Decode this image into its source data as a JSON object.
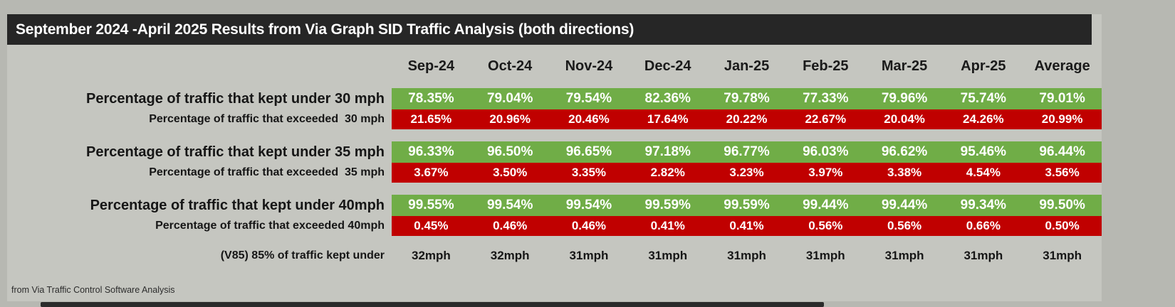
{
  "title": "September 2024 -April 2025 Results from Via Graph SID Traffic Analysis (both directions)",
  "footer": "from Via Traffic Control Software Analysis",
  "colors": {
    "title_bar_bg": "#262626",
    "canvas_bg": "#c5c6c0",
    "page_bg": "#b7b8b2",
    "kept_under_green": "#70ad47",
    "exceeded_red": "#c00000",
    "value_text": "#ffffff"
  },
  "chart_data": {
    "type": "table",
    "title": "September 2024 -April 2025 Results from Via Graph SID Traffic Analysis (both directions)",
    "columns": [
      "Sep-24",
      "Oct-24",
      "Nov-24",
      "Dec-24",
      "Jan-25",
      "Feb-25",
      "Mar-25",
      "Apr-25",
      "Average"
    ],
    "rows": [
      {
        "label": "Percentage of traffic that kept under 30 mph",
        "style": "green",
        "values": [
          "78.35%",
          "79.04%",
          "79.54%",
          "82.36%",
          "79.78%",
          "77.33%",
          "79.96%",
          "75.74%",
          "79.01%"
        ]
      },
      {
        "label": "Percentage of traffic that exceeded  30 mph",
        "style": "red",
        "values": [
          "21.65%",
          "20.96%",
          "20.46%",
          "17.64%",
          "20.22%",
          "22.67%",
          "20.04%",
          "24.26%",
          "20.99%"
        ]
      },
      {
        "label": "Percentage of traffic that kept under 35 mph",
        "style": "green",
        "values": [
          "96.33%",
          "96.50%",
          "96.65%",
          "97.18%",
          "96.77%",
          "96.03%",
          "96.62%",
          "95.46%",
          "96.44%"
        ]
      },
      {
        "label": "Percentage of traffic that exceeded  35 mph",
        "style": "red",
        "values": [
          "3.67%",
          "3.50%",
          "3.35%",
          "2.82%",
          "3.23%",
          "3.97%",
          "3.38%",
          "4.54%",
          "3.56%"
        ]
      },
      {
        "label": "Percentage of traffic that kept under 40mph",
        "style": "green",
        "values": [
          "99.55%",
          "99.54%",
          "99.54%",
          "99.59%",
          "99.59%",
          "99.44%",
          "99.44%",
          "99.34%",
          "99.50%"
        ]
      },
      {
        "label": "Percentage of traffic that exceeded 40mph",
        "style": "red",
        "values": [
          "0.45%",
          "0.46%",
          "0.46%",
          "0.41%",
          "0.41%",
          "0.56%",
          "0.56%",
          "0.66%",
          "0.50%"
        ]
      },
      {
        "label": "(V85) 85% of traffic kept under",
        "style": "plain",
        "values": [
          "32mph",
          "32mph",
          "31mph",
          "31mph",
          "31mph",
          "31mph",
          "31mph",
          "31mph",
          "31mph"
        ]
      }
    ]
  }
}
